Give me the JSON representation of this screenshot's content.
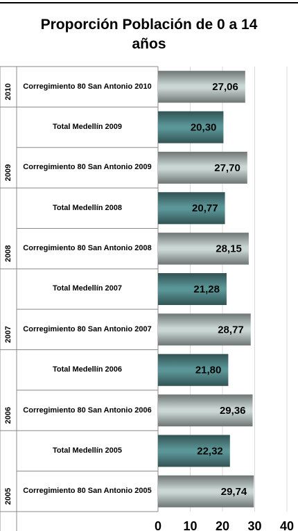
{
  "chart_data": {
    "type": "bar",
    "orientation": "horizontal",
    "title": "Proporción Población de 0 a 14 años",
    "xlim": [
      0,
      40
    ],
    "xticks": [
      0,
      10,
      20,
      30,
      40
    ],
    "grid": true,
    "groups": [
      {
        "label": "2010",
        "categories": [
          "Corregimiento 80 San Antonio 2010"
        ],
        "values": [
          27.06
        ],
        "value_labels": [
          "27,06"
        ],
        "colors": [
          "#c9d6d4"
        ]
      },
      {
        "label": "2009",
        "categories": [
          "Total Medellín 2009",
          "Corregimiento 80 San Antonio 2009"
        ],
        "values": [
          20.3,
          27.7
        ],
        "value_labels": [
          "20,30",
          "27,70"
        ],
        "colors": [
          "#5a9597",
          "#c9d6d4"
        ]
      },
      {
        "label": "2008",
        "categories": [
          "Total Medellín 2008",
          "Corregimiento 80 San Antonio 2008"
        ],
        "values": [
          20.77,
          28.15
        ],
        "value_labels": [
          "20,77",
          "28,15"
        ],
        "colors": [
          "#5a9597",
          "#c9d6d4"
        ]
      },
      {
        "label": "2007",
        "categories": [
          "Total Medellín 2007",
          "Corregimiento 80 San Antonio 2007"
        ],
        "values": [
          21.28,
          28.77
        ],
        "value_labels": [
          "21,28",
          "28,77"
        ],
        "colors": [
          "#5a9597",
          "#c9d6d4"
        ]
      },
      {
        "label": "2006",
        "categories": [
          "Total Medellín 2006",
          "Corregimiento 80 San Antonio 2006"
        ],
        "values": [
          21.8,
          29.36
        ],
        "value_labels": [
          "21,80",
          "29,36"
        ],
        "colors": [
          "#5a9597",
          "#c9d6d4"
        ]
      },
      {
        "label": "2005",
        "categories": [
          "Total Medellín 2005",
          "Corregimiento 80 San Antonio 2005"
        ],
        "values": [
          22.32,
          29.74
        ],
        "value_labels": [
          "22,32",
          "29,74"
        ],
        "colors": [
          "#5a9597",
          "#c9d6d4"
        ]
      }
    ]
  }
}
